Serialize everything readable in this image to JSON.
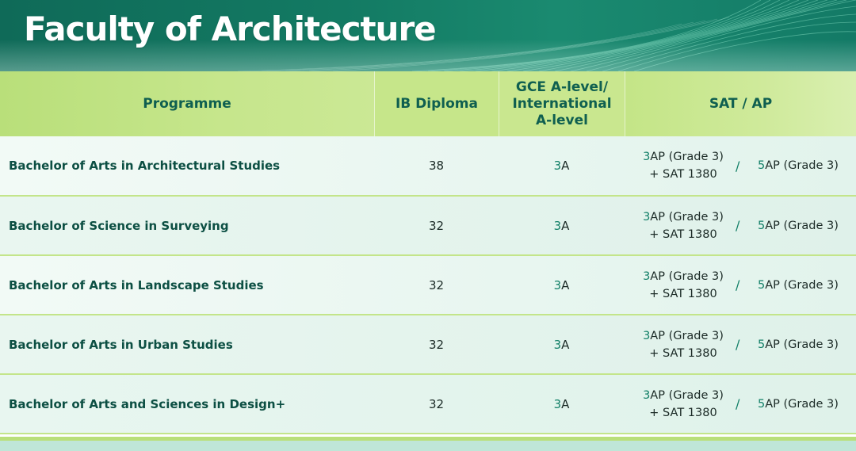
{
  "header": {
    "title": "Faculty of Architecture"
  },
  "table": {
    "columns": {
      "programme": "Programme",
      "ib": "IB Diploma",
      "gce_line1": "GCE A-level/",
      "gce_line2": "International",
      "gce_line3": "A-level",
      "sat": "SAT / AP"
    },
    "rows": [
      {
        "programme": "Bachelor of Arts in Architectural Studies",
        "ib": "38",
        "gce_num": "3",
        "gce_unit": "A",
        "sat_left_num": "3",
        "sat_left_text": "AP (Grade 3)",
        "sat_left_line2": "+ SAT 1380",
        "sep": "/",
        "sat_right_num": "5",
        "sat_right_text": "AP (Grade 3)"
      },
      {
        "programme": "Bachelor of Science in Surveying",
        "ib": "32",
        "gce_num": "3",
        "gce_unit": "A",
        "sat_left_num": "3",
        "sat_left_text": "AP (Grade 3)",
        "sat_left_line2": "+ SAT 1380",
        "sep": "/",
        "sat_right_num": "5",
        "sat_right_text": "AP (Grade 3)"
      },
      {
        "programme": "Bachelor of Arts in Landscape Studies",
        "ib": "32",
        "gce_num": "3",
        "gce_unit": "A",
        "sat_left_num": "3",
        "sat_left_text": "AP (Grade 3)",
        "sat_left_line2": "+ SAT 1380",
        "sep": "/",
        "sat_right_num": "5",
        "sat_right_text": "AP (Grade 3)"
      },
      {
        "programme": "Bachelor of Arts in Urban Studies",
        "ib": "32",
        "gce_num": "3",
        "gce_unit": "A",
        "sat_left_num": "3",
        "sat_left_text": "AP (Grade 3)",
        "sat_left_line2": "+ SAT 1380",
        "sep": "/",
        "sat_right_num": "5",
        "sat_right_text": "AP (Grade 3)"
      },
      {
        "programme": "Bachelor of Arts and Sciences in Design+",
        "ib": "32",
        "gce_num": "3",
        "gce_unit": "A",
        "sat_left_num": "3",
        "sat_left_text": "AP (Grade 3)",
        "sat_left_line2": "+ SAT 1380",
        "sep": "/",
        "sat_right_num": "5",
        "sat_right_text": "AP (Grade 3)"
      }
    ]
  },
  "colors": {
    "banner": "#137a63",
    "header_row": "#c6e68a",
    "accent_number": "#138068",
    "heading_text": "#0f5f50"
  }
}
